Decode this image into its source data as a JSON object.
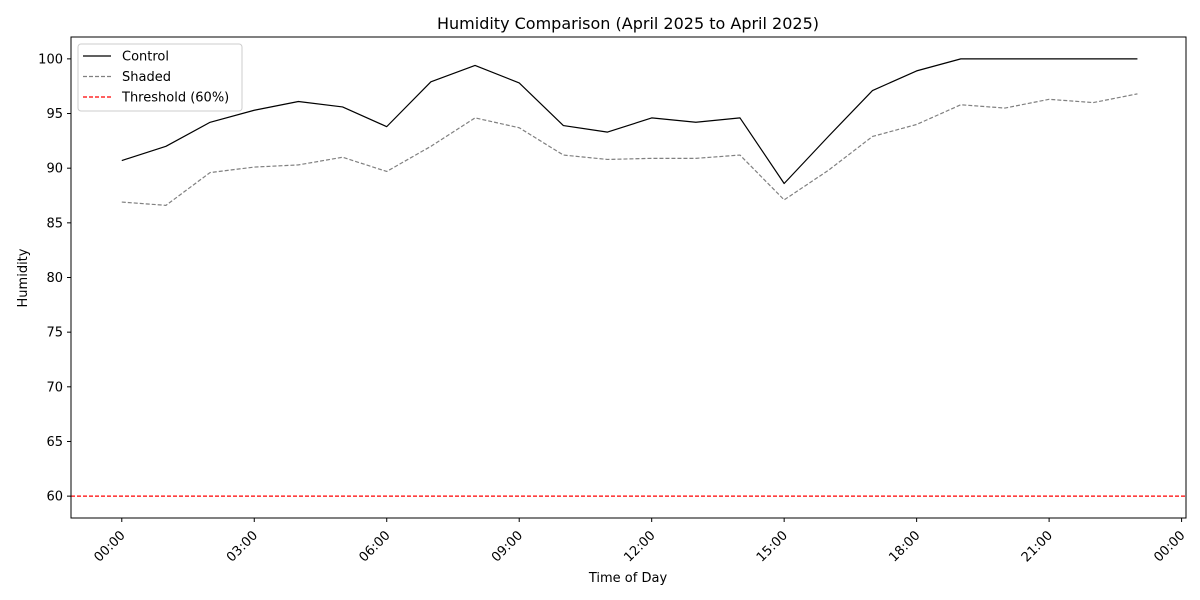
{
  "chart_data": {
    "type": "line",
    "title": "Humidity Comparison (April 2025 to April 2025)",
    "xlabel": "Time of Day",
    "ylabel": "Humidity",
    "x_ticks": [
      "00:00",
      "03:00",
      "06:00",
      "09:00",
      "12:00",
      "15:00",
      "18:00",
      "21:00",
      "00:00"
    ],
    "x_tick_hours": [
      0,
      3,
      6,
      9,
      12,
      15,
      18,
      21,
      24
    ],
    "xlim": [
      -1.15,
      24.1
    ],
    "ylim": [
      58,
      102
    ],
    "y_ticks": [
      60,
      65,
      70,
      75,
      80,
      85,
      90,
      95,
      100
    ],
    "grid": false,
    "legend_position": "upper-left",
    "x": [
      0,
      1,
      2,
      3,
      4,
      5,
      6,
      7,
      8,
      9,
      10,
      11,
      12,
      13,
      14,
      15,
      16,
      17,
      18,
      19,
      20,
      21,
      22,
      23
    ],
    "series": [
      {
        "name": "Control",
        "color": "#000000",
        "style": "solid",
        "values": [
          90.7,
          92.0,
          94.2,
          95.3,
          96.1,
          95.6,
          93.8,
          97.9,
          99.4,
          97.8,
          93.9,
          93.3,
          94.6,
          94.2,
          94.6,
          88.6,
          92.9,
          97.1,
          98.9,
          100.0,
          100.0,
          100.0,
          100.0,
          100.0
        ]
      },
      {
        "name": "Shaded",
        "color": "#808080",
        "style": "dashed",
        "values": [
          86.9,
          86.6,
          89.6,
          90.1,
          90.3,
          91.0,
          89.7,
          92.0,
          94.6,
          93.7,
          91.2,
          90.8,
          90.9,
          90.9,
          91.2,
          87.1,
          89.8,
          92.9,
          94.0,
          95.8,
          95.5,
          96.3,
          96.0,
          96.8
        ]
      }
    ],
    "threshold": {
      "name": "Threshold (60%)",
      "value": 60,
      "color": "#ff0000",
      "style": "dashed"
    }
  }
}
